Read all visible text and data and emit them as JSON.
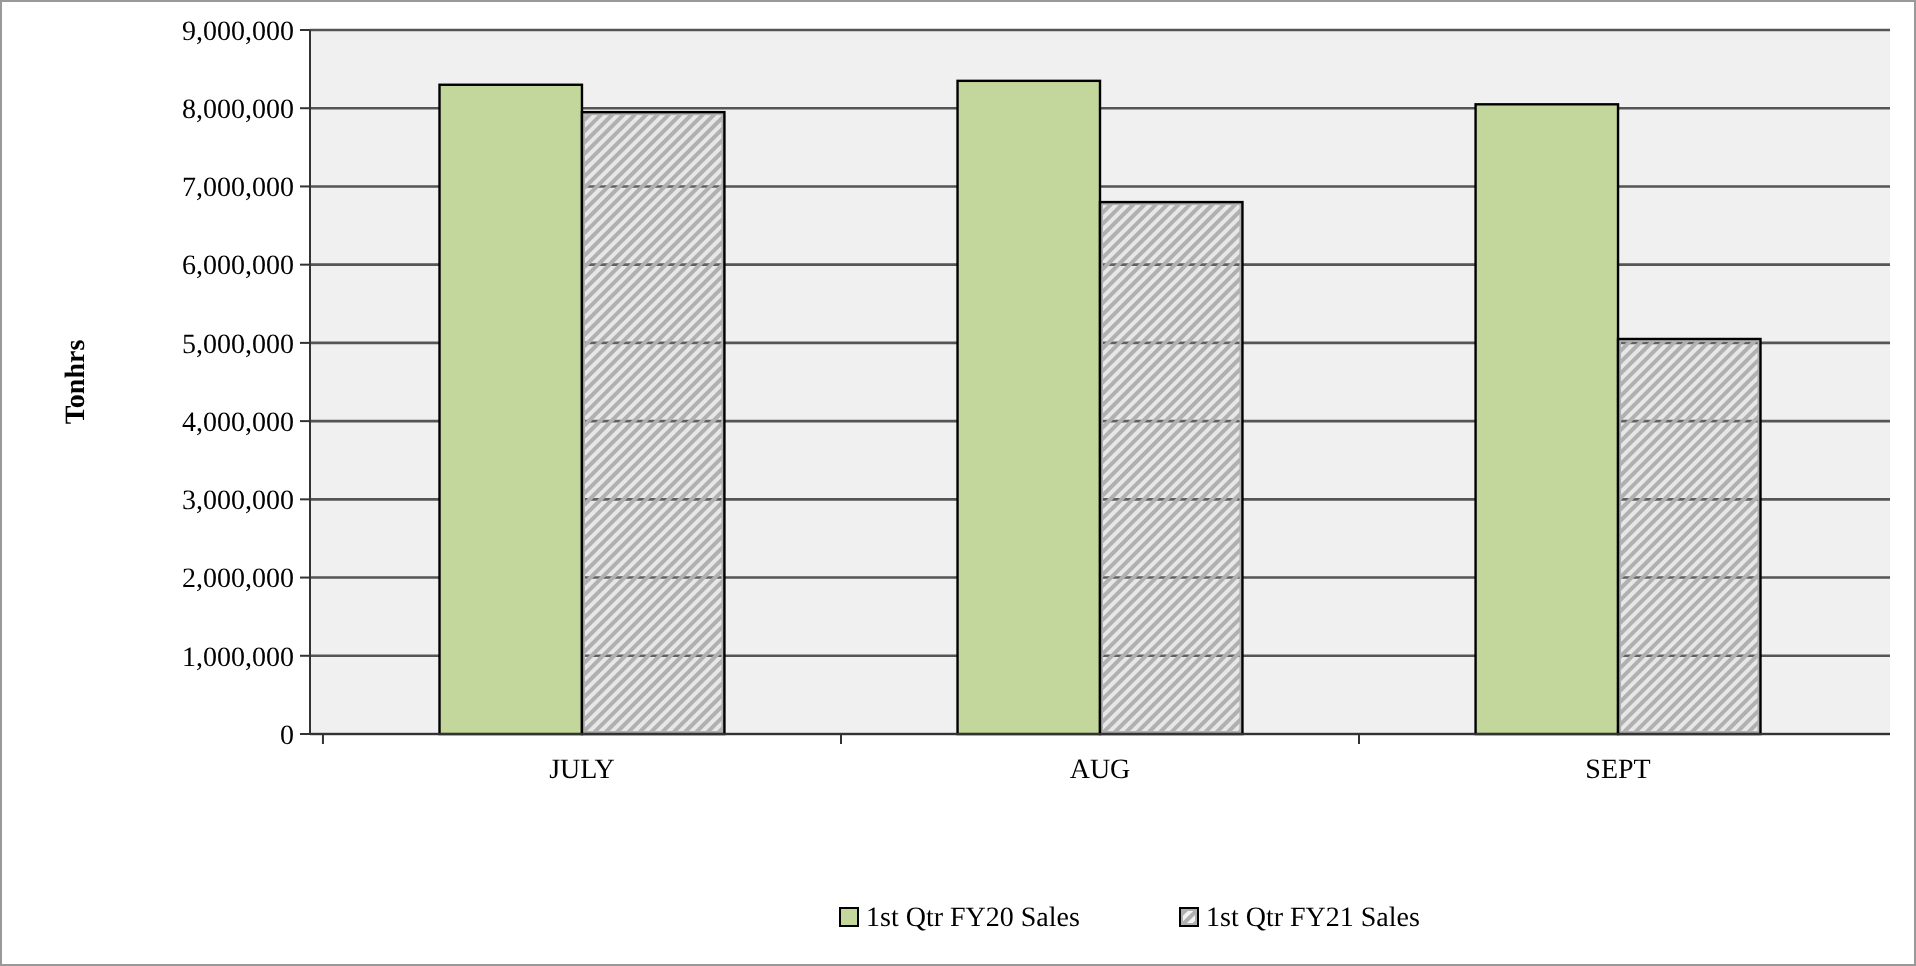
{
  "chart_data": {
    "type": "bar",
    "ylabel": "Tonhrs",
    "categories": [
      "JULY",
      "AUG",
      "SEPT"
    ],
    "series": [
      {
        "name": "1st Qtr FY20 Sales",
        "color": "#c3d69b",
        "values": [
          8300000,
          8350000,
          8050000
        ]
      },
      {
        "name": "1st Qtr FY21 Sales",
        "color": "#b0b0b0",
        "values": [
          7950000,
          6800000,
          5050000
        ]
      }
    ],
    "ylim": [
      0,
      9000000
    ],
    "yticks": [
      {
        "value": 0,
        "label": "0"
      },
      {
        "value": 1000000,
        "label": "1,000,000"
      },
      {
        "value": 2000000,
        "label": "2,000,000"
      },
      {
        "value": 3000000,
        "label": "3,000,000"
      },
      {
        "value": 4000000,
        "label": "4,000,000"
      },
      {
        "value": 5000000,
        "label": "5,000,000"
      },
      {
        "value": 6000000,
        "label": "6,000,000"
      },
      {
        "value": 7000000,
        "label": "7,000,000"
      },
      {
        "value": 8000000,
        "label": "8,000,000"
      },
      {
        "value": 9000000,
        "label": "9,000,000"
      }
    ],
    "grid": "y",
    "legend": "bottom"
  }
}
